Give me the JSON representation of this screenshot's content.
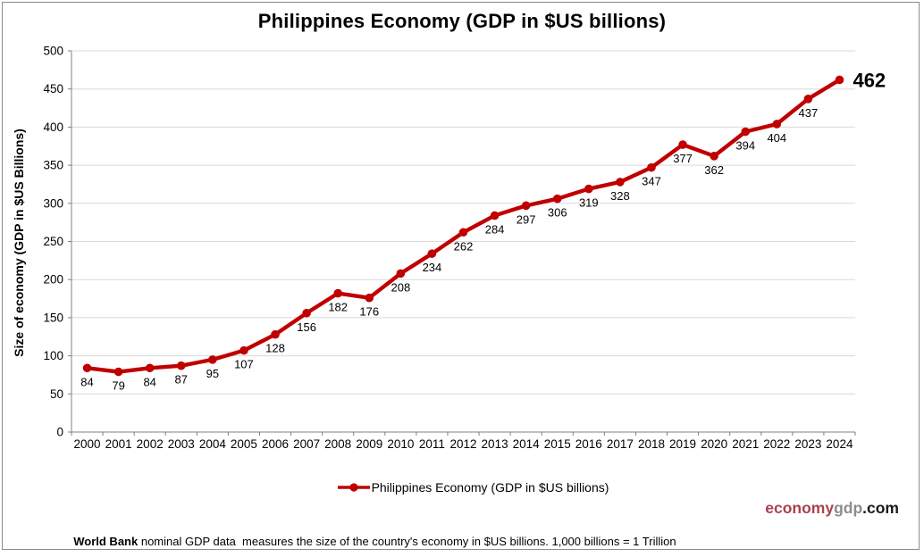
{
  "chart_data": {
    "type": "line",
    "title": "Philippines Economy (GDP in $US billions)",
    "xlabel": "",
    "ylabel": "Size of economy (GDP in $US Billions)",
    "categories": [
      "2000",
      "2001",
      "2002",
      "2003",
      "2004",
      "2005",
      "2006",
      "2007",
      "2008",
      "2009",
      "2010",
      "2011",
      "2012",
      "2013",
      "2014",
      "2015",
      "2016",
      "2017",
      "2018",
      "2019",
      "2020",
      "2021",
      "2022",
      "2023",
      "2024"
    ],
    "series": [
      {
        "name": "Philippines Economy (GDP in $US billions)",
        "color": "#C00000",
        "values": [
          84,
          79,
          84,
          87,
          95,
          107,
          128,
          156,
          182,
          176,
          208,
          234,
          262,
          284,
          297,
          306,
          319,
          328,
          347,
          377,
          362,
          394,
          404,
          437,
          462
        ]
      }
    ],
    "ylim": [
      0,
      500
    ],
    "ytick_step": 50,
    "grid": true,
    "legend_position": "bottom",
    "data_labels": true,
    "emphasized_last_label": "462",
    "colors": {
      "gridline": "#d9d9d9",
      "axis": "#808080",
      "tick_label": "#000000",
      "data_label": "#000000"
    }
  },
  "legend": {
    "label": "Philippines Economy (GDP in $US billions)"
  },
  "watermark": {
    "part1": "economy",
    "part2": "gdp",
    "part3": ".com",
    "color1": "#a8424e",
    "color2": "#8c8c8c",
    "color3": "#1a1a1a"
  },
  "footer": {
    "bold": "World Bank",
    "text": " nominal GDP data  measures the size of the country's economy in $US billions. 1,000 billions = 1 Trillion"
  }
}
